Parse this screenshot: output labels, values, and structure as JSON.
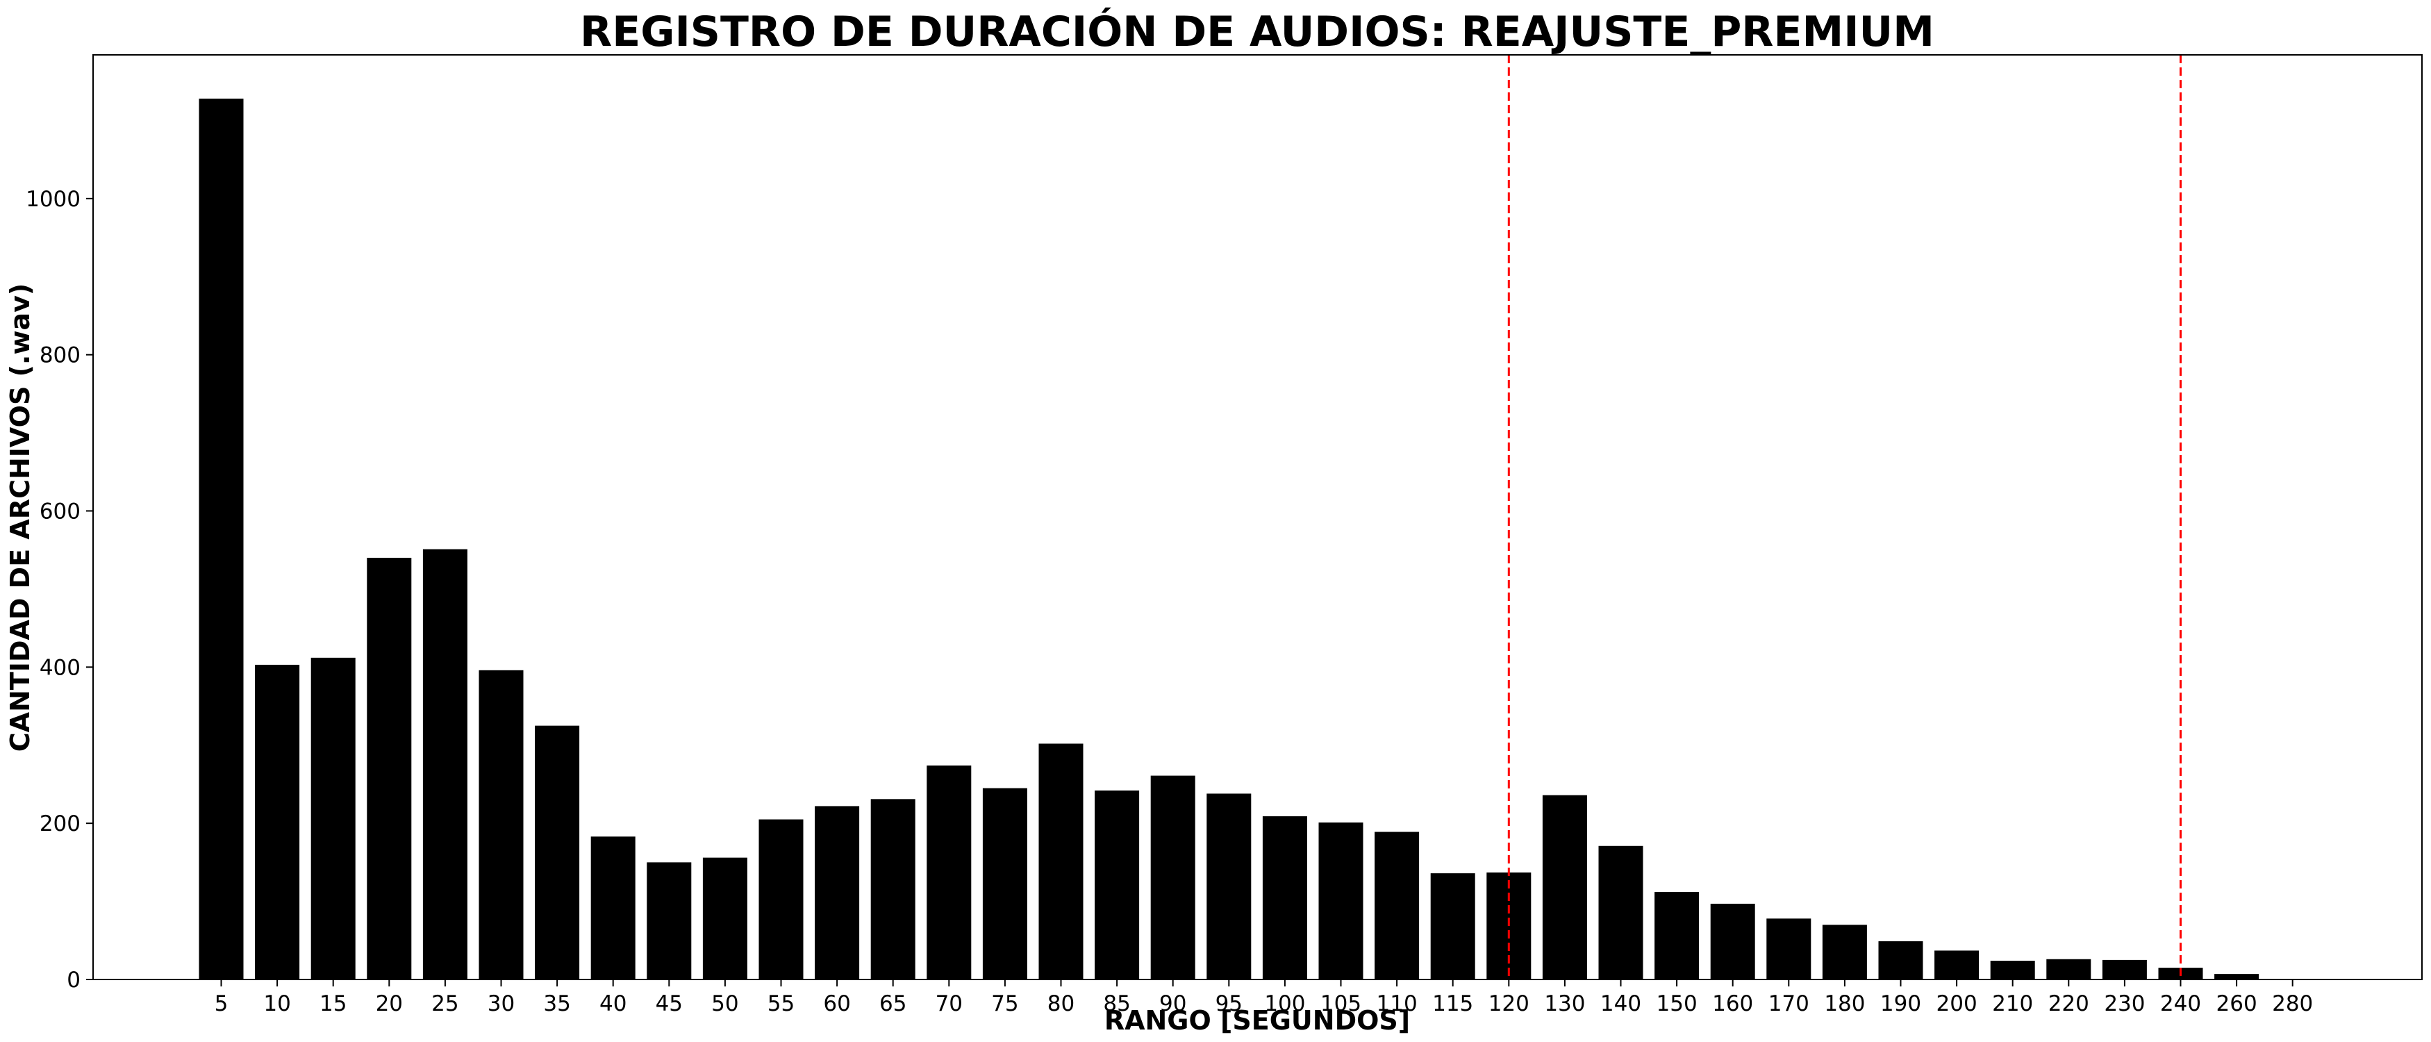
{
  "chart_data": {
    "type": "bar",
    "title": "REGISTRO DE DURACIÓN DE AUDIOS: REAJUSTE_PREMIUM",
    "xlabel": "RANGO [SEGUNDOS]",
    "ylabel": "CANTIDAD DE ARCHIVOS (.wav)",
    "categories": [
      "5",
      "10",
      "15",
      "20",
      "25",
      "30",
      "35",
      "40",
      "45",
      "50",
      "55",
      "60",
      "65",
      "70",
      "75",
      "80",
      "85",
      "90",
      "95",
      "100",
      "105",
      "110",
      "115",
      "120",
      "130",
      "140",
      "150",
      "160",
      "170",
      "180",
      "190",
      "200",
      "210",
      "220",
      "230",
      "240",
      "260",
      "280"
    ],
    "values": [
      1128,
      403,
      412,
      540,
      551,
      396,
      325,
      183,
      150,
      156,
      205,
      222,
      231,
      274,
      245,
      302,
      242,
      261,
      238,
      209,
      201,
      189,
      136,
      137,
      236,
      171,
      112,
      97,
      78,
      70,
      49,
      37,
      24,
      26,
      25,
      15,
      7,
      0
    ],
    "yticks": [
      0,
      200,
      400,
      600,
      800,
      1000
    ],
    "ylim": [
      0,
      1184
    ],
    "bar_color": "#000000",
    "reference_lines": [
      {
        "x_category": "120",
        "color": "#ff0000",
        "style": "dashed"
      },
      {
        "x_category": "240",
        "color": "#ff0000",
        "style": "dashed"
      }
    ],
    "grid": false,
    "legend": "none"
  }
}
